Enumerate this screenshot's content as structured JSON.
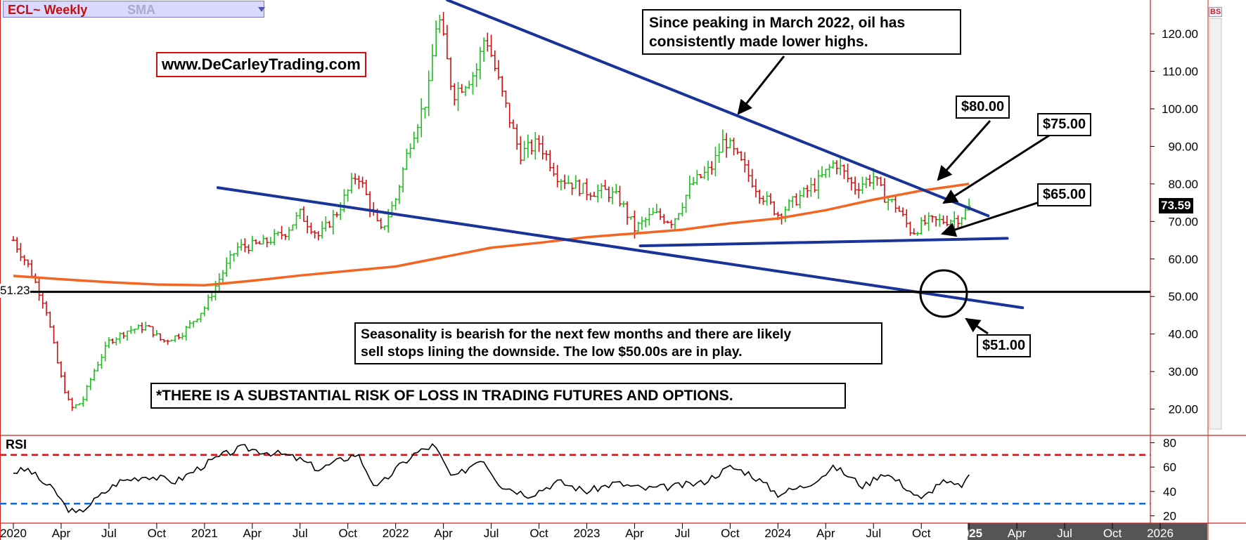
{
  "header": {
    "symbol": "ECL",
    "timeframe": "~ Weekly",
    "indicator": "SMA",
    "dropdown_icon": "triangle-down-icon",
    "toolbar_badge": "BS"
  },
  "website": "www.DeCarleyTrading.com",
  "annotations": {
    "peak_note": [
      "Since peaking in March 2022, oil has",
      "consistently made lower highs."
    ],
    "seasonality_note": [
      "Seasonality is bearish for the next few months and there are likely",
      "sell stops lining the downside. The low $50.00s are in play."
    ],
    "disclaimer": "*THERE IS A SUBSTANTIAL RISK OF LOSS IN TRADING FUTURES AND OPTIONS.",
    "price_80": "$80.00",
    "price_75": "$75.00",
    "price_65": "$65.00",
    "price_51": "$51.00"
  },
  "indicators": {
    "rsi_label": "RSI",
    "left_level_label": "51.23",
    "last_price_label": "73.59"
  },
  "colors": {
    "up_bar": "#22bb22",
    "down_bar": "#cc1111",
    "sma": "#f26522",
    "trendline": "#1a3399",
    "rsi_overbought": "#dd1111",
    "rsi_oversold": "#1166dd",
    "axis": "#cc2222"
  },
  "chart_data": [
    {
      "type": "line",
      "title": "ECL ~ Weekly",
      "x_ticks": [
        "2020",
        "Apr",
        "Jul",
        "Oct",
        "2021",
        "Apr",
        "Jul",
        "Oct",
        "2022",
        "Apr",
        "Jul",
        "Oct",
        "2023",
        "Apr",
        "Jul",
        "Oct",
        "2024",
        "Apr",
        "Jul",
        "Oct",
        "2025",
        "Apr",
        "Jul",
        "Oct",
        "2026"
      ],
      "y_ticks": [
        20,
        30,
        40,
        50,
        60,
        70,
        80,
        90,
        100,
        110,
        120
      ],
      "ylim": [
        13,
        129
      ],
      "series": [
        {
          "values": [
            [
              2020.0,
              65
            ],
            [
              2020.08,
              58
            ],
            [
              2020.17,
              47
            ],
            [
              2020.24,
              30
            ],
            [
              2020.3,
              20
            ],
            [
              2020.36,
              22
            ],
            [
              2020.42,
              30
            ],
            [
              2020.5,
              38
            ],
            [
              2020.6,
              41
            ],
            [
              2020.7,
              42
            ],
            [
              2020.78,
              38
            ],
            [
              2020.88,
              40
            ],
            [
              2021.0,
              47
            ],
            [
              2021.08,
              55
            ],
            [
              2021.17,
              63
            ],
            [
              2021.3,
              64
            ],
            [
              2021.42,
              67
            ],
            [
              2021.5,
              72
            ],
            [
              2021.6,
              66
            ],
            [
              2021.7,
              73
            ],
            [
              2021.8,
              83
            ],
            [
              2021.92,
              67
            ],
            [
              2022.0,
              76
            ],
            [
              2022.08,
              92
            ],
            [
              2022.17,
              104
            ],
            [
              2022.22,
              126
            ],
            [
              2022.3,
              104
            ],
            [
              2022.42,
              110
            ],
            [
              2022.47,
              120
            ],
            [
              2022.55,
              105
            ],
            [
              2022.65,
              88
            ],
            [
              2022.75,
              91
            ],
            [
              2022.85,
              82
            ],
            [
              2023.0,
              78
            ],
            [
              2023.1,
              78
            ],
            [
              2023.17,
              76
            ],
            [
              2023.25,
              68
            ],
            [
              2023.35,
              72
            ],
            [
              2023.45,
              70
            ],
            [
              2023.55,
              80
            ],
            [
              2023.65,
              84
            ],
            [
              2023.72,
              92
            ],
            [
              2023.8,
              86
            ],
            [
              2023.9,
              78
            ],
            [
              2024.0,
              72
            ],
            [
              2024.1,
              76
            ],
            [
              2024.2,
              80
            ],
            [
              2024.3,
              86
            ],
            [
              2024.4,
              79
            ],
            [
              2024.5,
              82
            ],
            [
              2024.55,
              77
            ],
            [
              2024.62,
              74
            ],
            [
              2024.7,
              67
            ],
            [
              2024.78,
              70
            ],
            [
              2024.85,
              70
            ],
            [
              2024.95,
              71
            ],
            [
              2025.0,
              73.59
            ]
          ]
        },
        {
          "name": "SMA",
          "values": [
            [
              2020.0,
              55.5
            ],
            [
              2020.25,
              54.6
            ],
            [
              2020.5,
              53.8
            ],
            [
              2020.75,
              53.2
            ],
            [
              2021.0,
              53.0
            ],
            [
              2021.25,
              54.2
            ],
            [
              2021.5,
              55.6
            ],
            [
              2021.75,
              56.8
            ],
            [
              2022.0,
              58.0
            ],
            [
              2022.25,
              60.5
            ],
            [
              2022.5,
              63.0
            ],
            [
              2022.75,
              64.3
            ],
            [
              2023.0,
              65.8
            ],
            [
              2023.25,
              66.8
            ],
            [
              2023.5,
              67.8
            ],
            [
              2023.75,
              69.5
            ],
            [
              2024.0,
              70.8
            ],
            [
              2024.25,
              73.0
            ],
            [
              2024.5,
              75.8
            ],
            [
              2024.75,
              78.2
            ],
            [
              2025.0,
              80.0
            ]
          ]
        }
      ],
      "trendlines": [
        {
          "from": [
            2022.27,
            129
          ],
          "to": [
            2025.1,
            71.5
          ]
        },
        {
          "from": [
            2021.07,
            79
          ],
          "to": [
            2025.28,
            47
          ]
        },
        {
          "from": [
            2023.28,
            63.5
          ],
          "to": [
            2025.2,
            65.5
          ]
        }
      ],
      "horizontal_line": 51.23,
      "grid": false
    },
    {
      "type": "line",
      "title": "RSI",
      "y_ticks": [
        20,
        40,
        60,
        80
      ],
      "ylim": [
        14,
        86
      ],
      "overbought": 70,
      "oversold": 30,
      "series": [
        {
          "values": [
            [
              2020.0,
              56
            ],
            [
              2020.08,
              58
            ],
            [
              2020.15,
              48
            ],
            [
              2020.22,
              40
            ],
            [
              2020.27,
              28
            ],
            [
              2020.33,
              21
            ],
            [
              2020.42,
              32
            ],
            [
              2020.55,
              48
            ],
            [
              2020.7,
              53
            ],
            [
              2020.85,
              48
            ],
            [
              2021.0,
              62
            ],
            [
              2021.1,
              70
            ],
            [
              2021.2,
              76
            ],
            [
              2021.3,
              73
            ],
            [
              2021.42,
              70
            ],
            [
              2021.5,
              66
            ],
            [
              2021.6,
              58
            ],
            [
              2021.7,
              65
            ],
            [
              2021.8,
              71
            ],
            [
              2021.9,
              42
            ],
            [
              2022.0,
              58
            ],
            [
              2022.1,
              71
            ],
            [
              2022.2,
              78
            ],
            [
              2022.3,
              50
            ],
            [
              2022.45,
              68
            ],
            [
              2022.55,
              45
            ],
            [
              2022.7,
              37
            ],
            [
              2022.85,
              48
            ],
            [
              2023.0,
              40
            ],
            [
              2023.15,
              47
            ],
            [
              2023.3,
              42
            ],
            [
              2023.45,
              44
            ],
            [
              2023.6,
              47
            ],
            [
              2023.75,
              60
            ],
            [
              2023.85,
              55
            ],
            [
              2024.0,
              38
            ],
            [
              2024.15,
              45
            ],
            [
              2024.3,
              60
            ],
            [
              2024.45,
              44
            ],
            [
              2024.55,
              56
            ],
            [
              2024.65,
              46
            ],
            [
              2024.75,
              33
            ],
            [
              2024.85,
              48
            ],
            [
              2024.95,
              44
            ],
            [
              2025.0,
              51
            ]
          ]
        }
      ]
    }
  ]
}
